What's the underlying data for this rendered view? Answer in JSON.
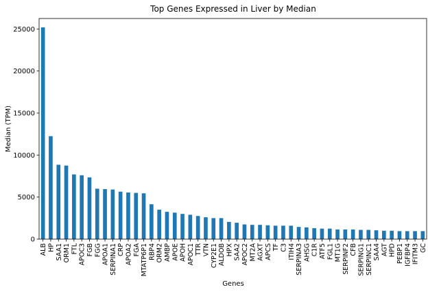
{
  "chart_data": {
    "type": "bar",
    "title": "Top Genes Expressed in Liver by Median",
    "xlabel": "Genes",
    "ylabel": "Median (TPM)",
    "ylim": [
      0,
      26250
    ],
    "yticks": [
      0,
      5000,
      10000,
      15000,
      20000,
      25000
    ],
    "grid": false,
    "bar_color": "#1f77b4",
    "categories": [
      "ALB",
      "HP",
      "SAA1",
      "ORM1",
      "FTL",
      "APOC3",
      "FGB",
      "FGG",
      "APOA1",
      "SERPINA1",
      "CRP",
      "APOA2",
      "FGA",
      "MTATP6P1",
      "RBP4",
      "ORM2",
      "AMBP",
      "APOE",
      "APOH",
      "APOC1",
      "TTR",
      "VTN",
      "CYP2E1",
      "ALDOB",
      "HPX",
      "SAA2",
      "APOC2",
      "MT2A",
      "AGXT",
      "APCS",
      "TF",
      "C3",
      "ITIH4",
      "SERPINA3",
      "AHSG",
      "C1R",
      "ATF5",
      "FGL1",
      "MT1G",
      "SERPINF2",
      "CFB",
      "SERPING1",
      "SERPINC1",
      "SAA4",
      "AGT",
      "HPD",
      "PEBP1",
      "IGFBP4",
      "IFITM3",
      "GC"
    ],
    "values": [
      25200,
      12250,
      8850,
      8750,
      7700,
      7600,
      7350,
      6000,
      5950,
      5900,
      5650,
      5550,
      5500,
      5450,
      4150,
      3500,
      3250,
      3150,
      3000,
      2900,
      2750,
      2600,
      2500,
      2500,
      2050,
      1950,
      1750,
      1700,
      1700,
      1650,
      1600,
      1600,
      1600,
      1450,
      1400,
      1300,
      1250,
      1250,
      1150,
      1150,
      1150,
      1100,
      1100,
      1050,
      1000,
      1000,
      950,
      950,
      950,
      950
    ]
  }
}
